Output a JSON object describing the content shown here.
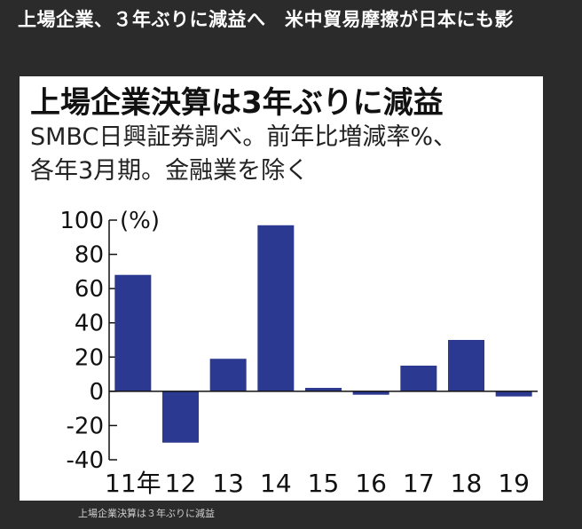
{
  "page": {
    "headline": "上場企業、３年ぶりに減益へ　米中貿易摩擦が日本にも影",
    "caption": "上場企業決算は３年ぶりに減益"
  },
  "chart_data": {
    "type": "bar",
    "title": "上場企業決算は3年ぶりに減益",
    "subtitle_line1": "SMBC日興証券調べ。前年比増減率%、",
    "subtitle_line2": "各年3月期。金融業を除く",
    "ylabel": "(%)",
    "xlabel": "",
    "categories": [
      "11年",
      "12",
      "13",
      "14",
      "15",
      "16",
      "17",
      "18",
      "19"
    ],
    "values": [
      68,
      -30,
      19,
      97,
      2,
      -2,
      15,
      30,
      -3
    ],
    "ylim": [
      -40,
      100
    ],
    "yticks": [
      -40,
      -20,
      0,
      20,
      40,
      60,
      80,
      100
    ],
    "ytick_labels": [
      "-40",
      "-20",
      "0",
      "20",
      "40",
      "60",
      "80",
      "100"
    ],
    "bar_color": "#2b3990",
    "grid": false
  }
}
